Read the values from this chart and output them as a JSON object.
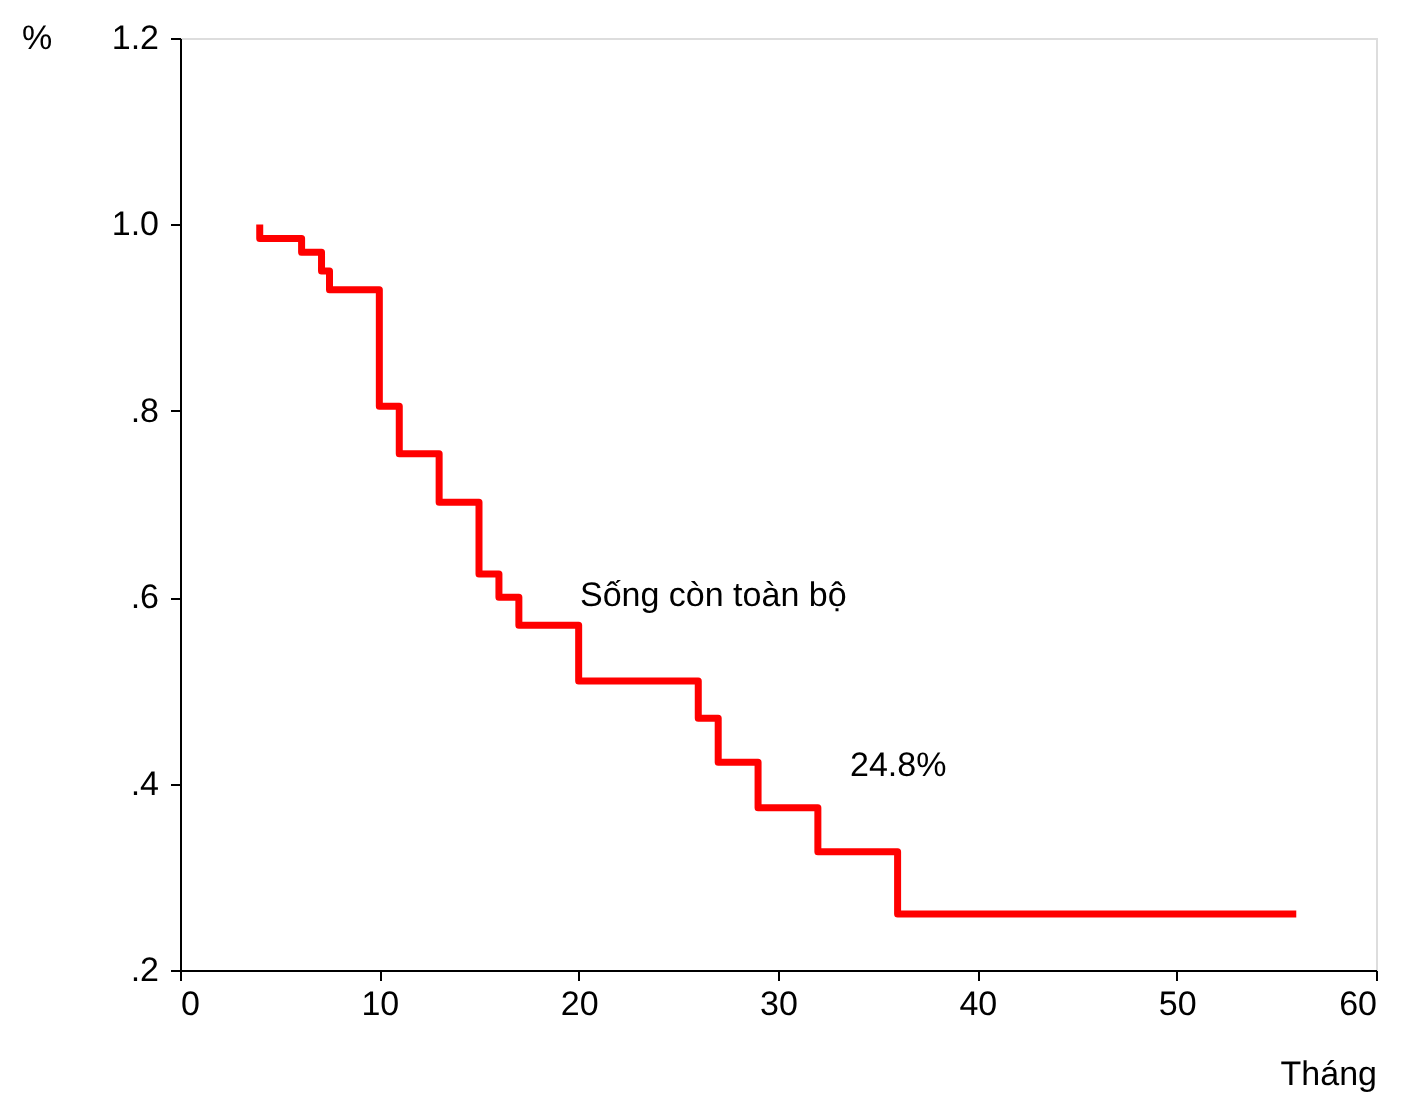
{
  "chart_data": {
    "type": "step",
    "xlabel": "Tháng",
    "ylabel": "%",
    "x": [
      4,
      4,
      6.1,
      7.1,
      7.5,
      10,
      11,
      13,
      15,
      16,
      17,
      20,
      26,
      27,
      29,
      32,
      36,
      56
    ],
    "series": [
      {
        "color": "#ff0000",
        "values": [
          1.0,
          0.985,
          0.97,
          0.95,
          0.93,
          0.805,
          0.754,
          0.702,
          0.625,
          0.6,
          0.57,
          0.51,
          0.47,
          0.423,
          0.374,
          0.327,
          0.26,
          0.26
        ]
      }
    ],
    "xlim": [
      0,
      60
    ],
    "xticks": [
      0,
      10,
      20,
      30,
      40,
      50,
      60
    ],
    "ylim": [
      0.2,
      1.2
    ],
    "yticks": [
      {
        "value": 0.2,
        "label": ".2"
      },
      {
        "value": 0.4,
        "label": ".4"
      },
      {
        "value": 0.6,
        "label": ".6"
      },
      {
        "value": 0.8,
        "label": ".8"
      },
      {
        "value": 1.0,
        "label": "1.0"
      },
      {
        "value": 1.2,
        "label": "1.2"
      }
    ],
    "annotations": [
      "Sống còn toàn bộ",
      "24.8%"
    ],
    "grid": false,
    "marker": "none",
    "line_style": "solid"
  }
}
